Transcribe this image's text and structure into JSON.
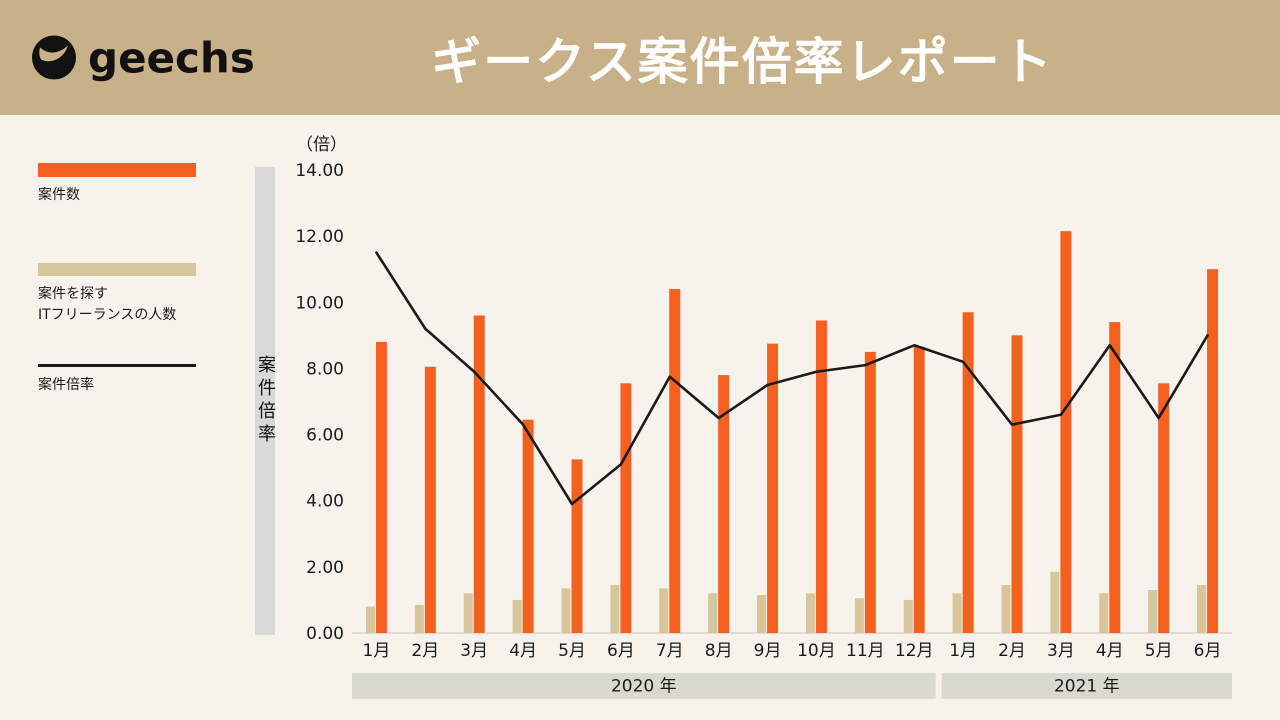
{
  "header": {
    "logo_text": "geechs",
    "title": "ギークス案件倍率レポート"
  },
  "legend": {
    "items": [
      {
        "id": "cases",
        "label": "案件数",
        "swatch": "bar",
        "color": "#F4611E"
      },
      {
        "id": "freelancers",
        "label": "案件を探す\nITフリーランスの人数",
        "swatch": "bar",
        "color": "#D7C59B"
      },
      {
        "id": "ratio",
        "label": "案件倍率",
        "swatch": "line",
        "color": "#1A1A1A"
      }
    ]
  },
  "colors": {
    "header_bg": "#C8B189",
    "page_bg": "#F7F3EC",
    "orange": "#F4611E",
    "tan": "#D7C59B",
    "line": "#1A1A1A",
    "axis_bar": "#D9D9D9",
    "year_band": "#DBD8D0"
  },
  "chart_data": {
    "type": "bar+line",
    "title": "ギークス案件倍率レポート",
    "unit_label": "（倍）",
    "y_axis_title": "案件倍率",
    "ylim": [
      0,
      14
    ],
    "y_tick_step": 2,
    "y_tick_labels": [
      "0.00",
      "2.00",
      "4.00",
      "6.00",
      "8.00",
      "10.00",
      "12.00",
      "14.00"
    ],
    "grid": false,
    "legend_position": "left",
    "categories": [
      "1月",
      "2月",
      "3月",
      "4月",
      "5月",
      "6月",
      "7月",
      "8月",
      "9月",
      "10月",
      "11月",
      "12月",
      "1月",
      "2月",
      "3月",
      "4月",
      "5月",
      "6月"
    ],
    "year_bands": [
      {
        "label": "2020 年",
        "from": 0,
        "to": 11
      },
      {
        "label": "2021 年",
        "from": 12,
        "to": 17
      }
    ],
    "series": [
      {
        "name": "案件を探すITフリーランスの人数",
        "type": "bar",
        "color": "#D7C59B",
        "values": [
          0.8,
          0.85,
          1.2,
          1.0,
          1.35,
          1.45,
          1.35,
          1.2,
          1.15,
          1.2,
          1.05,
          1.0,
          1.2,
          1.45,
          1.85,
          1.2,
          1.3,
          1.45
        ]
      },
      {
        "name": "案件数",
        "type": "bar",
        "color": "#F4611E",
        "values": [
          8.8,
          8.05,
          9.6,
          6.45,
          5.25,
          7.55,
          10.4,
          7.8,
          8.75,
          9.45,
          8.5,
          8.65,
          9.7,
          9.0,
          12.15,
          9.4,
          7.55,
          11.0
        ]
      },
      {
        "name": "案件倍率",
        "type": "line",
        "color": "#1A1A1A",
        "values": [
          11.5,
          9.2,
          7.9,
          6.3,
          3.9,
          5.1,
          7.75,
          6.5,
          7.5,
          7.9,
          8.1,
          8.7,
          8.2,
          6.3,
          6.6,
          8.7,
          6.5,
          9.0
        ]
      }
    ]
  }
}
